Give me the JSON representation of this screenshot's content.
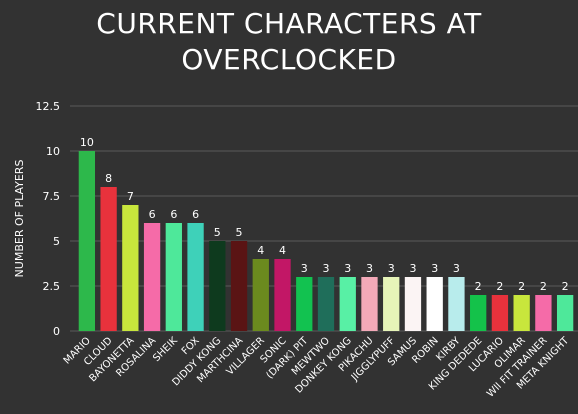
{
  "chart_data": {
    "type": "bar",
    "title": "CURRENT CHARACTERS AT\nOVERCLOCKED",
    "xlabel": "",
    "ylabel": "NUMBER OF PLAYERS",
    "ylim": [
      0,
      12.5
    ],
    "yticks": [
      "0",
      "2.5",
      "5",
      "7.5",
      "10",
      "12.5"
    ],
    "grid": true,
    "background": "#323232",
    "categories": [
      "MARIO",
      "CLOUD",
      "BAYONETTA",
      "ROSALINA",
      "SHEIK",
      "FOX",
      "DIDDY KONG",
      "MARTHCINA",
      "VILLAGER",
      "SONIC",
      "(DARK) PIT",
      "MEWTWO",
      "DONKEY KONG",
      "PIKACHU",
      "JIGGLYPUFF",
      "SAMUS",
      "ROBIN",
      "KIRBY",
      "KING DEDEDE",
      "LUCARIO",
      "OLIMAR",
      "WII FIT TRAINER",
      "META KNIGHT"
    ],
    "values": [
      10,
      8,
      7,
      6,
      6,
      6,
      5,
      5,
      4,
      4,
      3,
      3,
      3,
      3,
      3,
      3,
      3,
      3,
      2,
      2,
      2,
      2,
      2
    ],
    "colors": [
      "#2db84b",
      "#e8323c",
      "#c8e63c",
      "#f56ba8",
      "#4ee89a",
      "#3ed1b9",
      "#0e3a1e",
      "#5a1414",
      "#6b8a1e",
      "#c21766",
      "#12c250",
      "#1f6e5a",
      "#58f0a5",
      "#f3a9b8",
      "#e6f4b8",
      "#fbf4f4",
      "#ffffff",
      "#b8ecec",
      "#14c24a",
      "#e8323c",
      "#c8e63c",
      "#f56ba8",
      "#4ee89a"
    ]
  }
}
